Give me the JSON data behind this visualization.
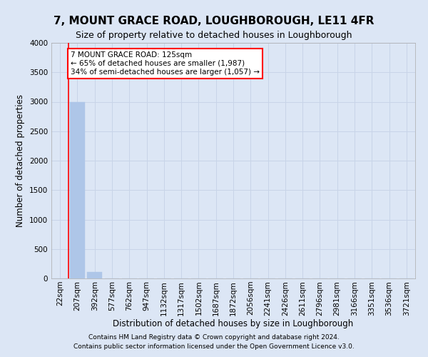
{
  "title": "7, MOUNT GRACE ROAD, LOUGHBOROUGH, LE11 4FR",
  "subtitle": "Size of property relative to detached houses in Loughborough",
  "xlabel": "Distribution of detached houses by size in Loughborough",
  "ylabel": "Number of detached properties",
  "footer_line1": "Contains HM Land Registry data © Crown copyright and database right 2024.",
  "footer_line2": "Contains public sector information licensed under the Open Government Licence v3.0.",
  "categories": [
    "22sqm",
    "207sqm",
    "392sqm",
    "577sqm",
    "762sqm",
    "947sqm",
    "1132sqm",
    "1317sqm",
    "1502sqm",
    "1687sqm",
    "1872sqm",
    "2056sqm",
    "2241sqm",
    "2426sqm",
    "2611sqm",
    "2796sqm",
    "2981sqm",
    "3166sqm",
    "3351sqm",
    "3536sqm",
    "3721sqm"
  ],
  "values": [
    0,
    2990,
    115,
    0,
    0,
    0,
    0,
    0,
    0,
    0,
    0,
    0,
    0,
    0,
    0,
    0,
    0,
    0,
    0,
    0,
    0
  ],
  "bar_color": "#aec6e8",
  "bar_edge_color": "#aec6e8",
  "grid_color": "#c8d4e8",
  "background_color": "#dce6f5",
  "ylim": [
    0,
    4000
  ],
  "yticks": [
    0,
    500,
    1000,
    1500,
    2000,
    2500,
    3000,
    3500,
    4000
  ],
  "annotation_line1": "7 MOUNT GRACE ROAD: 125sqm",
  "annotation_line2": "← 65% of detached houses are smaller (1,987)",
  "annotation_line3": "34% of semi-detached houses are larger (1,057) →",
  "title_fontsize": 11,
  "subtitle_fontsize": 9,
  "axis_label_fontsize": 8.5,
  "tick_fontsize": 7.5,
  "annotation_fontsize": 7.5,
  "footer_fontsize": 6.5
}
